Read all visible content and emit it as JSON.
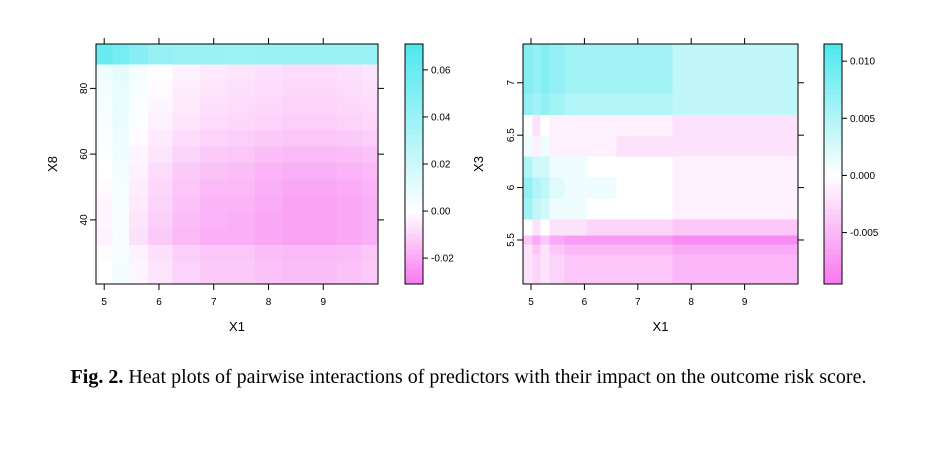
{
  "caption": {
    "label": "Fig. 2.",
    "text": " Heat plots of pairwise interactions of predictors with their impact on the outcome risk score."
  },
  "colors": {
    "high": "#4de8ee",
    "mid": "#ffffff",
    "low": "#f777f0",
    "axis": "#000000"
  },
  "chart_data": [
    {
      "type": "heatmap",
      "title": "",
      "xlabel": "X1",
      "ylabel": "X8",
      "xlim": [
        4.85,
        10.0
      ],
      "ylim": [
        20.5,
        93.5
      ],
      "xticks": [
        5,
        6,
        7,
        8,
        9
      ],
      "yticks": [
        40,
        60,
        80
      ],
      "colorbar": {
        "min": -0.031,
        "max": 0.071,
        "ticks": [
          -0.02,
          0.0,
          0.02,
          0.04,
          0.06
        ],
        "tick_labels": [
          "-0.02",
          "0.00",
          "0.02",
          "0.04",
          "0.06"
        ]
      },
      "x": [
        5.0,
        5.3,
        5.6,
        6.0,
        6.5,
        7.0,
        7.5,
        8.0,
        8.5,
        9.0,
        9.5,
        9.9
      ],
      "y": [
        25,
        30,
        35,
        40,
        45,
        50,
        55,
        60,
        65,
        70,
        75,
        80,
        85,
        90
      ],
      "z": [
        [
          0.0,
          0.005,
          -0.002,
          -0.006,
          -0.01,
          -0.012,
          -0.012,
          -0.014,
          -0.015,
          -0.015,
          -0.014,
          -0.012
        ],
        [
          -0.001,
          0.004,
          -0.003,
          -0.007,
          -0.011,
          -0.013,
          -0.013,
          -0.015,
          -0.016,
          -0.016,
          -0.015,
          -0.013
        ],
        [
          -0.003,
          0.003,
          -0.007,
          -0.012,
          -0.016,
          -0.018,
          -0.018,
          -0.02,
          -0.021,
          -0.021,
          -0.02,
          -0.018
        ],
        [
          -0.002,
          0.003,
          -0.006,
          -0.011,
          -0.015,
          -0.017,
          -0.018,
          -0.02,
          -0.021,
          -0.021,
          -0.02,
          -0.018
        ],
        [
          -0.002,
          0.004,
          -0.005,
          -0.01,
          -0.014,
          -0.017,
          -0.017,
          -0.019,
          -0.021,
          -0.021,
          -0.02,
          -0.018
        ],
        [
          -0.001,
          0.004,
          -0.004,
          -0.009,
          -0.013,
          -0.016,
          -0.016,
          -0.018,
          -0.02,
          -0.02,
          -0.019,
          -0.017
        ],
        [
          0.0,
          0.005,
          -0.003,
          -0.008,
          -0.012,
          -0.014,
          -0.015,
          -0.017,
          -0.018,
          -0.018,
          -0.017,
          -0.016
        ],
        [
          0.001,
          0.006,
          -0.002,
          -0.006,
          -0.01,
          -0.012,
          -0.013,
          -0.015,
          -0.016,
          -0.016,
          -0.015,
          -0.014
        ],
        [
          0.002,
          0.007,
          -0.001,
          -0.005,
          -0.008,
          -0.01,
          -0.011,
          -0.012,
          -0.013,
          -0.013,
          -0.012,
          -0.011
        ],
        [
          0.003,
          0.008,
          0.001,
          -0.003,
          -0.006,
          -0.008,
          -0.009,
          -0.01,
          -0.011,
          -0.011,
          -0.01,
          -0.009
        ],
        [
          0.004,
          0.009,
          0.002,
          -0.002,
          -0.005,
          -0.007,
          -0.008,
          -0.009,
          -0.01,
          -0.01,
          -0.009,
          -0.008
        ],
        [
          0.005,
          0.01,
          0.003,
          -0.001,
          -0.004,
          -0.006,
          -0.007,
          -0.008,
          -0.009,
          -0.009,
          -0.008,
          -0.007
        ],
        [
          0.006,
          0.011,
          0.004,
          0.0,
          -0.003,
          -0.005,
          -0.006,
          -0.007,
          -0.008,
          -0.008,
          -0.007,
          -0.006
        ],
        [
          0.06,
          0.055,
          0.048,
          0.042,
          0.04,
          0.04,
          0.039,
          0.04,
          0.04,
          0.04,
          0.04,
          0.04
        ]
      ]
    },
    {
      "type": "heatmap",
      "title": "",
      "xlabel": "X1",
      "ylabel": "X3",
      "xlim": [
        4.85,
        10.0
      ],
      "ylim": [
        5.08,
        7.37
      ],
      "xticks": [
        5,
        6,
        7,
        8,
        9
      ],
      "yticks": [
        5.5,
        6.0,
        6.5,
        7.0
      ],
      "colorbar": {
        "min": -0.0095,
        "max": 0.0115,
        "ticks": [
          -0.005,
          0.0,
          0.005,
          0.01
        ],
        "tick_labels": [
          "-0.005",
          "0.000",
          "0.005",
          "0.010"
        ]
      },
      "x": [
        4.95,
        5.1,
        5.25,
        5.45,
        5.8,
        6.3,
        6.9,
        7.4,
        7.9,
        8.4,
        9.0,
        9.6
      ],
      "y": [
        5.15,
        5.3,
        5.43,
        5.5,
        5.6,
        5.8,
        6.0,
        6.2,
        6.4,
        6.6,
        6.8,
        7.0,
        7.2,
        7.33
      ],
      "z": [
        [
          -0.002,
          -0.003,
          -0.002,
          -0.003,
          -0.004,
          -0.004,
          -0.004,
          -0.004,
          -0.005,
          -0.005,
          -0.005,
          -0.005
        ],
        [
          -0.002,
          -0.003,
          -0.002,
          -0.003,
          -0.004,
          -0.004,
          -0.004,
          -0.004,
          -0.005,
          -0.005,
          -0.005,
          -0.005
        ],
        [
          -0.002,
          -0.004,
          -0.002,
          -0.004,
          -0.005,
          -0.005,
          -0.005,
          -0.005,
          -0.006,
          -0.006,
          -0.006,
          -0.006
        ],
        [
          -0.004,
          -0.006,
          -0.004,
          -0.006,
          -0.007,
          -0.007,
          -0.007,
          -0.007,
          -0.008,
          -0.008,
          -0.008,
          -0.008
        ],
        [
          0.0,
          -0.002,
          0.0,
          -0.002,
          -0.002,
          -0.003,
          -0.003,
          -0.003,
          -0.004,
          -0.004,
          -0.004,
          -0.004
        ],
        [
          0.006,
          0.004,
          0.003,
          0.001,
          0.001,
          0.0,
          0.0,
          0.0,
          -0.001,
          -0.001,
          -0.001,
          -0.001
        ],
        [
          0.007,
          0.005,
          0.004,
          0.002,
          0.001,
          0.001,
          0.0,
          0.0,
          -0.001,
          -0.001,
          -0.001,
          -0.001
        ],
        [
          0.005,
          0.003,
          0.003,
          0.001,
          0.001,
          0.0,
          0.0,
          0.0,
          -0.001,
          -0.001,
          -0.001,
          -0.001
        ],
        [
          0.001,
          -0.001,
          0.001,
          -0.001,
          -0.001,
          -0.001,
          -0.002,
          -0.002,
          -0.002,
          -0.002,
          -0.002,
          -0.002
        ],
        [
          0.0,
          -0.002,
          0.0,
          -0.001,
          -0.001,
          -0.001,
          -0.001,
          -0.001,
          -0.002,
          -0.002,
          -0.002,
          -0.002
        ],
        [
          0.007,
          0.006,
          0.007,
          0.006,
          0.005,
          0.005,
          0.005,
          0.005,
          0.004,
          0.004,
          0.004,
          0.004
        ],
        [
          0.008,
          0.007,
          0.008,
          0.007,
          0.006,
          0.006,
          0.006,
          0.006,
          0.004,
          0.004,
          0.004,
          0.004
        ],
        [
          0.008,
          0.007,
          0.008,
          0.007,
          0.006,
          0.006,
          0.006,
          0.006,
          0.004,
          0.004,
          0.004,
          0.004
        ],
        [
          0.008,
          0.007,
          0.008,
          0.007,
          0.006,
          0.006,
          0.006,
          0.006,
          0.004,
          0.004,
          0.004,
          0.004
        ]
      ]
    }
  ]
}
